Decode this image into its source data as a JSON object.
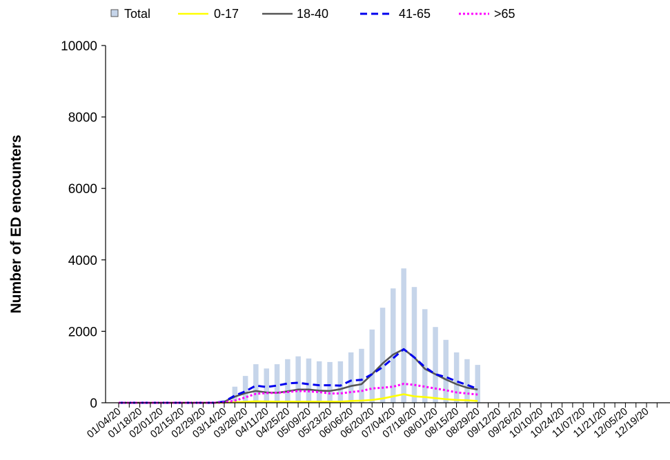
{
  "chart_data": {
    "type": "bar",
    "ylabel": "Number of ED encounters",
    "xlabel": "",
    "title": "",
    "ylim": [
      0,
      10000
    ],
    "y_ticks": [
      0,
      2000,
      4000,
      6000,
      8000,
      10000
    ],
    "x_tick_labels": [
      "01/04/20",
      "01/18/20",
      "02/01/20",
      "02/15/20",
      "02/29/20",
      "03/14/20",
      "03/28/20",
      "04/11/20",
      "04/25/20",
      "05/09/20",
      "05/23/20",
      "06/06/20",
      "06/20/20",
      "07/04/20",
      "07/18/20",
      "08/01/20",
      "08/15/20",
      "08/29/20",
      "09/12/20",
      "09/26/20",
      "10/10/20",
      "10/24/20",
      "11/07/20",
      "11/21/20",
      "12/05/20",
      "12/19/20"
    ],
    "legend_position": "top",
    "bars": {
      "name": "Total",
      "color": "#c6d5ea",
      "values": [
        0,
        0,
        0,
        0,
        0,
        0,
        0,
        0,
        0,
        0,
        60,
        450,
        750,
        1080,
        960,
        1080,
        1220,
        1300,
        1240,
        1160,
        1140,
        1160,
        1410,
        1510,
        2050,
        2660,
        3200,
        3760,
        3240,
        2620,
        2120,
        1760,
        1410,
        1220,
        1060
      ]
    },
    "series": [
      {
        "name": "0-17",
        "color": "#ffff00",
        "style": "solid",
        "values": [
          0,
          0,
          0,
          0,
          0,
          0,
          0,
          0,
          0,
          0,
          5,
          15,
          25,
          40,
          35,
          30,
          30,
          30,
          30,
          30,
          30,
          30,
          50,
          60,
          80,
          120,
          180,
          240,
          180,
          160,
          130,
          100,
          80,
          70,
          50
        ]
      },
      {
        "name": "18-40",
        "color": "#555555",
        "style": "solid",
        "values": [
          0,
          0,
          0,
          0,
          0,
          0,
          0,
          0,
          0,
          0,
          30,
          170,
          270,
          330,
          290,
          280,
          320,
          370,
          370,
          340,
          330,
          380,
          470,
          520,
          800,
          1100,
          1350,
          1500,
          1270,
          950,
          800,
          650,
          520,
          420,
          370
        ]
      },
      {
        "name": "41-65",
        "color": "#0000ee",
        "style": "dashed",
        "values": [
          0,
          0,
          0,
          0,
          0,
          0,
          0,
          0,
          0,
          0,
          30,
          200,
          320,
          480,
          440,
          480,
          540,
          560,
          520,
          490,
          490,
          480,
          620,
          640,
          800,
          1000,
          1250,
          1500,
          1270,
          1000,
          800,
          720,
          600,
          500,
          390
        ]
      },
      {
        "name": ">65",
        "color": "#ff00ff",
        "style": "dotted",
        "values": [
          0,
          0,
          0,
          0,
          0,
          0,
          0,
          0,
          0,
          0,
          10,
          60,
          150,
          250,
          270,
          280,
          300,
          330,
          320,
          300,
          260,
          260,
          300,
          330,
          400,
          420,
          450,
          530,
          500,
          450,
          400,
          350,
          290,
          260,
          230
        ]
      }
    ]
  }
}
